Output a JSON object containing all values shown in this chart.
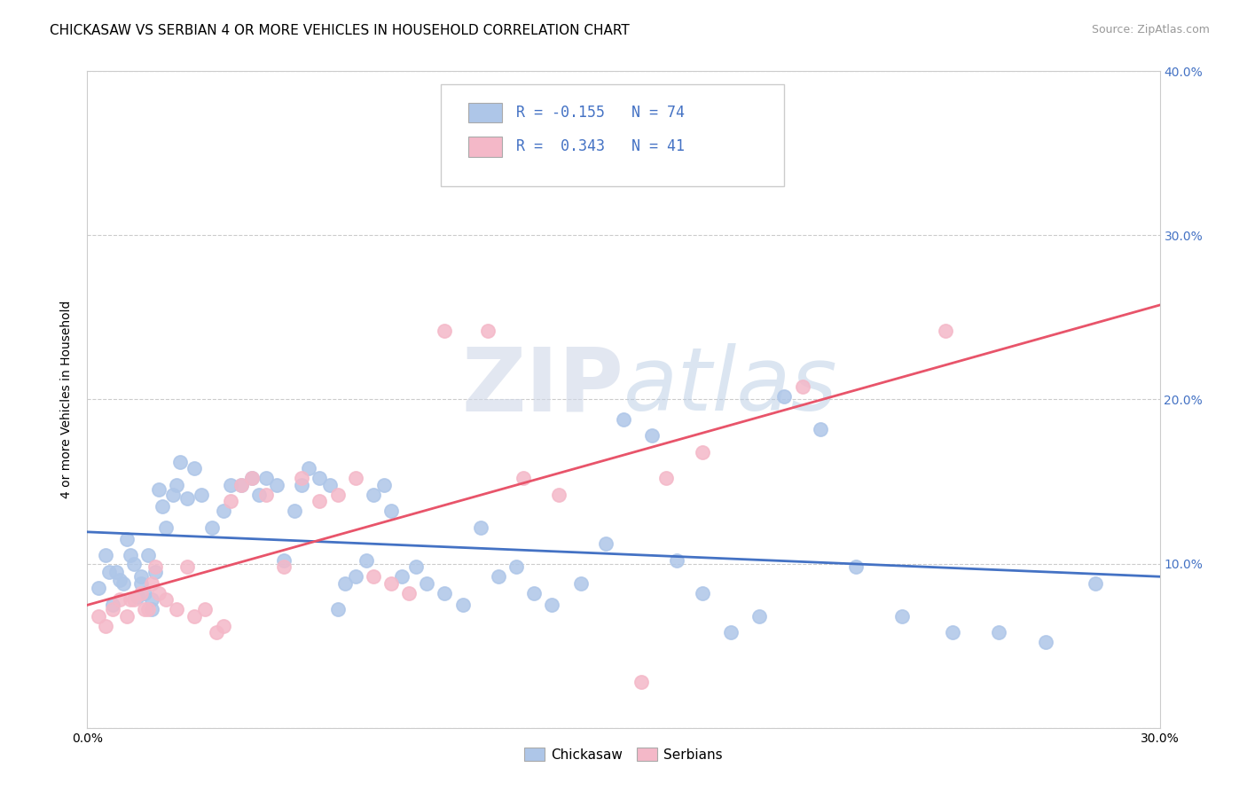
{
  "title": "CHICKASAW VS SERBIAN 4 OR MORE VEHICLES IN HOUSEHOLD CORRELATION CHART",
  "source": "Source: ZipAtlas.com",
  "ylabel": "4 or more Vehicles in Household",
  "x_min": 0.0,
  "x_max": 0.3,
  "y_min": 0.0,
  "y_max": 0.4,
  "x_ticks": [
    0.0,
    0.05,
    0.1,
    0.15,
    0.2,
    0.25,
    0.3
  ],
  "x_tick_labels": [
    "0.0%",
    "",
    "",
    "",
    "",
    "",
    "30.0%"
  ],
  "y_ticks": [
    0.0,
    0.1,
    0.2,
    0.3,
    0.4
  ],
  "y_tick_labels_right": [
    "",
    "10.0%",
    "20.0%",
    "30.0%",
    "40.0%"
  ],
  "chickasaw_color": "#aec6e8",
  "serbian_color": "#f4b8c8",
  "chickasaw_line_color": "#4472c4",
  "serbian_line_color": "#e8546a",
  "chickasaw_R": -0.155,
  "chickasaw_N": 74,
  "serbian_R": 0.343,
  "serbian_N": 41,
  "chickasaw_x": [
    0.003,
    0.005,
    0.006,
    0.007,
    0.008,
    0.009,
    0.01,
    0.011,
    0.012,
    0.013,
    0.014,
    0.015,
    0.015,
    0.016,
    0.017,
    0.018,
    0.018,
    0.019,
    0.02,
    0.021,
    0.022,
    0.024,
    0.025,
    0.026,
    0.028,
    0.03,
    0.032,
    0.035,
    0.038,
    0.04,
    0.043,
    0.046,
    0.048,
    0.05,
    0.053,
    0.055,
    0.058,
    0.06,
    0.062,
    0.065,
    0.068,
    0.07,
    0.072,
    0.075,
    0.078,
    0.08,
    0.083,
    0.085,
    0.088,
    0.092,
    0.095,
    0.1,
    0.105,
    0.11,
    0.115,
    0.12,
    0.125,
    0.13,
    0.138,
    0.145,
    0.15,
    0.158,
    0.165,
    0.172,
    0.18,
    0.188,
    0.195,
    0.205,
    0.215,
    0.228,
    0.242,
    0.255,
    0.268,
    0.282
  ],
  "chickasaw_y": [
    0.085,
    0.105,
    0.095,
    0.075,
    0.095,
    0.09,
    0.088,
    0.115,
    0.105,
    0.1,
    0.08,
    0.092,
    0.088,
    0.082,
    0.105,
    0.078,
    0.072,
    0.095,
    0.145,
    0.135,
    0.122,
    0.142,
    0.148,
    0.162,
    0.14,
    0.158,
    0.142,
    0.122,
    0.132,
    0.148,
    0.148,
    0.152,
    0.142,
    0.152,
    0.148,
    0.102,
    0.132,
    0.148,
    0.158,
    0.152,
    0.148,
    0.072,
    0.088,
    0.092,
    0.102,
    0.142,
    0.148,
    0.132,
    0.092,
    0.098,
    0.088,
    0.082,
    0.075,
    0.122,
    0.092,
    0.098,
    0.082,
    0.075,
    0.088,
    0.112,
    0.188,
    0.178,
    0.102,
    0.082,
    0.058,
    0.068,
    0.202,
    0.182,
    0.098,
    0.068,
    0.058,
    0.058,
    0.052,
    0.088
  ],
  "serbian_x": [
    0.003,
    0.005,
    0.007,
    0.009,
    0.011,
    0.012,
    0.013,
    0.015,
    0.016,
    0.017,
    0.018,
    0.019,
    0.02,
    0.022,
    0.025,
    0.028,
    0.03,
    0.033,
    0.036,
    0.038,
    0.04,
    0.043,
    0.046,
    0.05,
    0.055,
    0.06,
    0.065,
    0.07,
    0.075,
    0.08,
    0.085,
    0.09,
    0.1,
    0.112,
    0.122,
    0.132,
    0.155,
    0.162,
    0.172,
    0.2,
    0.24
  ],
  "serbian_y": [
    0.068,
    0.062,
    0.072,
    0.078,
    0.068,
    0.078,
    0.078,
    0.082,
    0.072,
    0.072,
    0.088,
    0.098,
    0.082,
    0.078,
    0.072,
    0.098,
    0.068,
    0.072,
    0.058,
    0.062,
    0.138,
    0.148,
    0.152,
    0.142,
    0.098,
    0.152,
    0.138,
    0.142,
    0.152,
    0.092,
    0.088,
    0.082,
    0.242,
    0.242,
    0.152,
    0.142,
    0.028,
    0.152,
    0.168,
    0.208,
    0.242
  ],
  "watermark_zip": "ZIP",
  "watermark_atlas": "atlas",
  "background_color": "#ffffff",
  "grid_color": "#cccccc",
  "title_fontsize": 11,
  "axis_label_fontsize": 10,
  "tick_fontsize": 10,
  "legend_fontsize": 12,
  "source_fontsize": 9
}
